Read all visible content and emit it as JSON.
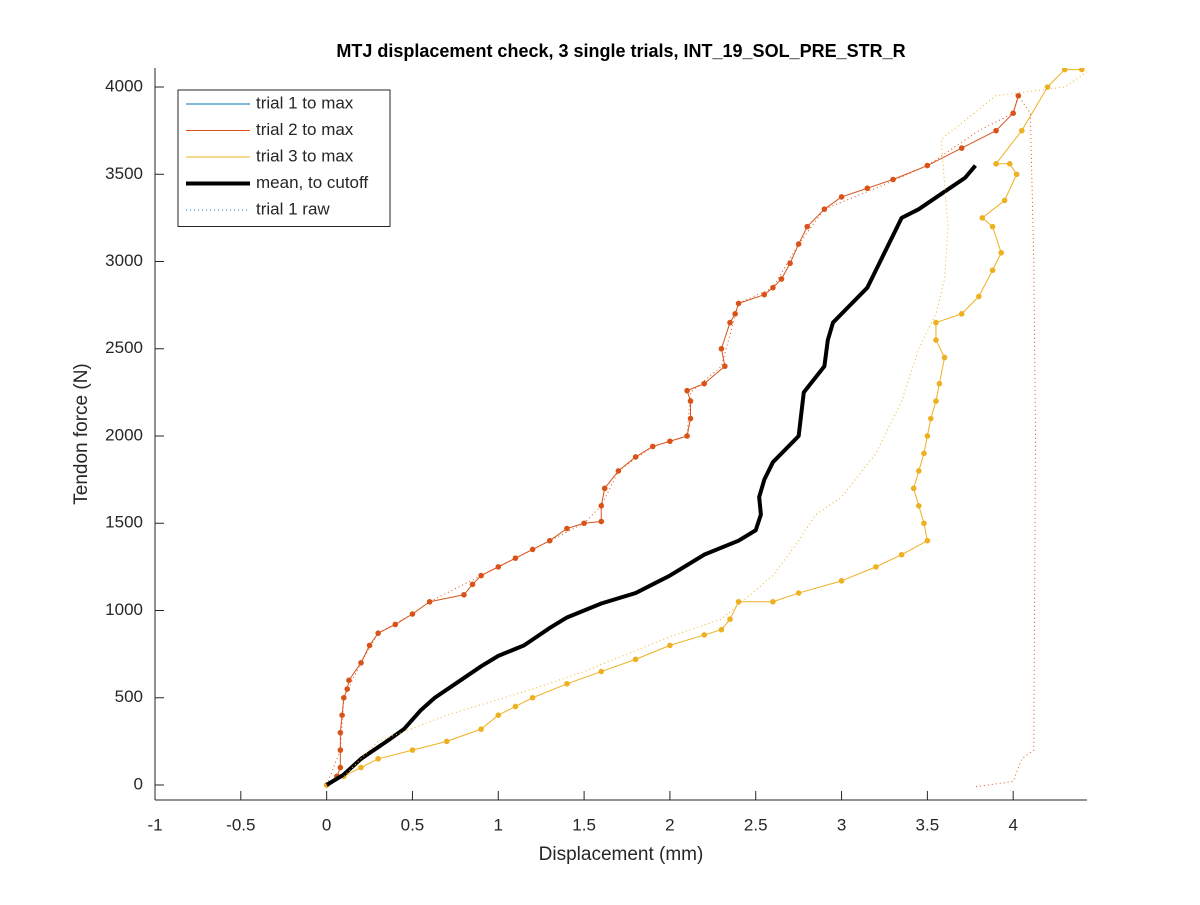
{
  "chart_data": {
    "type": "line",
    "title": "MTJ displacement check, 3 single trials, INT_19_SOL_PRE_STR_R",
    "x_label": "Displacement (mm)",
    "y_label": "Tendon force (N)",
    "xlim": [
      -1,
      4.43
    ],
    "ylim": [
      -86,
      4109
    ],
    "xticks": [
      -1,
      -0.5,
      0,
      0.5,
      1,
      1.5,
      2,
      2.5,
      3,
      3.5,
      4
    ],
    "yticks": [
      0,
      500,
      1000,
      1500,
      2000,
      2500,
      3000,
      3500,
      4000
    ],
    "legend": "upper left",
    "series": [
      {
        "name": "trial 1 to max",
        "color": "#0072bd",
        "style": "solid",
        "width": 1,
        "markers": false,
        "x": [],
        "values": []
      },
      {
        "name": "trial 2 to max",
        "color": "#d95319",
        "style": "solid",
        "width": 1,
        "markers": true,
        "x": [
          0,
          0.06,
          0.08,
          0.08,
          0.08,
          0.09,
          0.1,
          0.12,
          0.13,
          0.2,
          0.25,
          0.3,
          0.4,
          0.5,
          0.6,
          0.8,
          0.85,
          0.9,
          1.0,
          1.1,
          1.2,
          1.3,
          1.4,
          1.5,
          1.6,
          1.6,
          1.62,
          1.7,
          1.8,
          1.9,
          2.0,
          2.1,
          2.12,
          2.12,
          2.1,
          2.2,
          2.32,
          2.3,
          2.35,
          2.38,
          2.4,
          2.55,
          2.6,
          2.65,
          2.7,
          2.75,
          2.8,
          2.9,
          3.0,
          3.15,
          3.3,
          3.5,
          3.7,
          3.9,
          4.0,
          4.03
        ],
        "values": [
          0,
          50,
          100,
          200,
          300,
          400,
          500,
          550,
          600,
          700,
          800,
          870,
          920,
          980,
          1050,
          1090,
          1150,
          1200,
          1250,
          1300,
          1350,
          1400,
          1470,
          1500,
          1510,
          1600,
          1700,
          1800,
          1880,
          1940,
          1970,
          2000,
          2100,
          2200,
          2260,
          2300,
          2400,
          2500,
          2650,
          2700,
          2760,
          2810,
          2850,
          2900,
          2990,
          3100,
          3200,
          3300,
          3370,
          3420,
          3470,
          3550,
          3650,
          3750,
          3850,
          3950
        ]
      },
      {
        "name": "trial 3 to max",
        "color": "#edb120",
        "style": "solid",
        "width": 1,
        "markers": true,
        "x": [
          0,
          0.1,
          0.2,
          0.3,
          0.5,
          0.7,
          0.9,
          1.0,
          1.1,
          1.2,
          1.4,
          1.6,
          1.8,
          2.0,
          2.2,
          2.3,
          2.35,
          2.4,
          2.6,
          2.75,
          3.0,
          3.2,
          3.35,
          3.5,
          3.48,
          3.45,
          3.42,
          3.45,
          3.48,
          3.5,
          3.52,
          3.55,
          3.57,
          3.6,
          3.55,
          3.55,
          3.7,
          3.8,
          3.88,
          3.93,
          3.88,
          3.82,
          3.95,
          4.02,
          3.98,
          3.9,
          4.05,
          4.2,
          4.3,
          4.4
        ],
        "values": [
          0,
          50,
          100,
          150,
          200,
          250,
          320,
          400,
          450,
          500,
          580,
          650,
          720,
          800,
          860,
          890,
          950,
          1050,
          1050,
          1100,
          1170,
          1250,
          1320,
          1400,
          1500,
          1600,
          1700,
          1800,
          1900,
          2000,
          2100,
          2200,
          2300,
          2450,
          2550,
          2650,
          2700,
          2800,
          2950,
          3050,
          3200,
          3250,
          3350,
          3500,
          3560,
          3560,
          3750,
          4000,
          4100,
          4100
        ]
      },
      {
        "name": "mean, to cutoff",
        "color": "#000000",
        "style": "solid",
        "width": 4,
        "markers": false,
        "x": [
          0,
          0.1,
          0.2,
          0.35,
          0.45,
          0.55,
          0.63,
          0.75,
          0.9,
          1.0,
          1.15,
          1.3,
          1.4,
          1.6,
          1.8,
          1.9,
          2.0,
          2.1,
          2.2,
          2.4,
          2.5,
          2.53,
          2.52,
          2.55,
          2.6,
          2.7,
          2.75,
          2.78,
          2.82,
          2.9,
          2.92,
          2.95,
          3.05,
          3.15,
          3.2,
          3.25,
          3.3,
          3.35,
          3.45,
          3.6,
          3.72,
          3.78
        ],
        "values": [
          0,
          60,
          150,
          250,
          320,
          430,
          500,
          580,
          680,
          740,
          800,
          900,
          960,
          1040,
          1100,
          1150,
          1200,
          1260,
          1320,
          1400,
          1460,
          1550,
          1650,
          1750,
          1850,
          1950,
          2000,
          2250,
          2300,
          2400,
          2550,
          2650,
          2750,
          2850,
          2950,
          3050,
          3150,
          3250,
          3300,
          3400,
          3480,
          3550
        ]
      },
      {
        "name": "trial 1 raw",
        "color": "#0072bd",
        "style": "dotted",
        "width": 1,
        "markers": false,
        "x": [],
        "values": []
      },
      {
        "color": "#d95319",
        "style": "dotted",
        "width": 1,
        "markers": false,
        "x": [
          0,
          0.08,
          0.1,
          0.2,
          0.3,
          0.5,
          0.6,
          0.9,
          1.2,
          1.5,
          1.6,
          1.7,
          1.9,
          2.1,
          2.12,
          2.3,
          2.4,
          2.6,
          2.75,
          2.9,
          3.2,
          3.5,
          3.8,
          4.0,
          4.03,
          4.1,
          4.12,
          4.13,
          4.12,
          4.05,
          4.0,
          3.78
        ],
        "values": [
          0,
          200,
          500,
          700,
          870,
          980,
          1050,
          1200,
          1350,
          1500,
          1600,
          1800,
          1940,
          2000,
          2250,
          2400,
          2760,
          2850,
          3100,
          3300,
          3420,
          3550,
          3750,
          3850,
          3950,
          3850,
          3000,
          2000,
          200,
          150,
          20,
          -10
        ]
      },
      {
        "color": "#edb120",
        "style": "dotted",
        "width": 1,
        "markers": false,
        "x": [
          0.1,
          0.3,
          0.7,
          1.2,
          1.5,
          2.0,
          2.3,
          2.6,
          2.75,
          2.85,
          3.0,
          3.2,
          3.35,
          3.45,
          3.55,
          3.6,
          3.62,
          3.58,
          3.9,
          4.3,
          4.45
        ],
        "values": [
          50,
          250,
          400,
          550,
          650,
          850,
          950,
          1200,
          1400,
          1550,
          1650,
          1900,
          2200,
          2500,
          2700,
          2900,
          3200,
          3700,
          3950,
          4000,
          4100
        ]
      }
    ]
  }
}
